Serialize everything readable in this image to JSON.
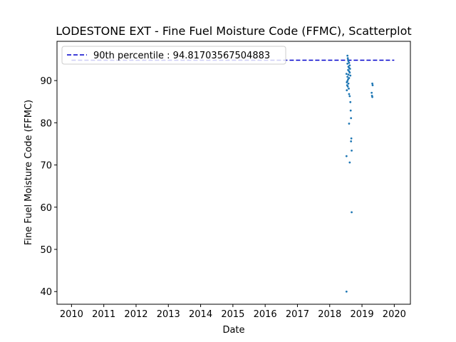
{
  "chart_data": {
    "type": "scatter",
    "title": "LODESTONE EXT - Fine Fuel Moisture Code (FFMC), Scatterplot",
    "xlabel": "Date",
    "ylabel": "Fine Fuel Moisture Code (FFMC)",
    "xlim": [
      2009.55,
      2020.5
    ],
    "ylim": [
      37,
      99.3
    ],
    "x_ticks": [
      2010,
      2011,
      2012,
      2013,
      2014,
      2015,
      2016,
      2017,
      2018,
      2019,
      2020
    ],
    "x_tick_labels": [
      "2010",
      "2011",
      "2012",
      "2013",
      "2014",
      "2015",
      "2016",
      "2017",
      "2018",
      "2019",
      "2020"
    ],
    "y_ticks": [
      40,
      50,
      60,
      70,
      80,
      90
    ],
    "y_tick_labels": [
      "40",
      "50",
      "60",
      "70",
      "80",
      "90"
    ],
    "grid": false,
    "legend_position": "top-left",
    "reference_line": {
      "label": "90th percentile : 94.81703567504883",
      "y": 94.81703567504883,
      "x_start": 2010,
      "x_end": 2020,
      "style": "dashed",
      "color": "#0000cc"
    },
    "series": [
      {
        "color": "#1f77b4",
        "points": [
          [
            2018.55,
            95.9
          ],
          [
            2018.56,
            95.3
          ],
          [
            2018.57,
            94.9
          ],
          [
            2018.58,
            94.6
          ],
          [
            2018.6,
            94.2
          ],
          [
            2018.55,
            94.0
          ],
          [
            2018.62,
            93.6
          ],
          [
            2018.58,
            93.3
          ],
          [
            2018.6,
            93.0
          ],
          [
            2018.63,
            92.8
          ],
          [
            2018.57,
            92.5
          ],
          [
            2018.6,
            92.2
          ],
          [
            2018.62,
            91.9
          ],
          [
            2018.52,
            91.6
          ],
          [
            2018.58,
            91.4
          ],
          [
            2018.64,
            91.2
          ],
          [
            2018.55,
            90.9
          ],
          [
            2018.6,
            90.6
          ],
          [
            2018.57,
            90.3
          ],
          [
            2018.55,
            89.9
          ],
          [
            2018.53,
            89.6
          ],
          [
            2018.58,
            89.3
          ],
          [
            2018.54,
            88.9
          ],
          [
            2018.56,
            88.6
          ],
          [
            2018.59,
            88.1
          ],
          [
            2018.53,
            87.7
          ],
          [
            2018.6,
            86.8
          ],
          [
            2018.62,
            86.3
          ],
          [
            2018.64,
            84.9
          ],
          [
            2018.65,
            82.9
          ],
          [
            2018.66,
            81.1
          ],
          [
            2018.6,
            79.8
          ],
          [
            2018.67,
            76.3
          ],
          [
            2018.66,
            75.6
          ],
          [
            2018.68,
            73.4
          ],
          [
            2018.52,
            72.1
          ],
          [
            2018.62,
            70.6
          ],
          [
            2018.68,
            58.8
          ],
          [
            2018.52,
            40.0
          ],
          [
            2019.32,
            89.3
          ],
          [
            2019.33,
            88.9
          ],
          [
            2019.3,
            87.1
          ],
          [
            2019.31,
            86.4
          ],
          [
            2019.32,
            86.1
          ]
        ]
      }
    ]
  }
}
